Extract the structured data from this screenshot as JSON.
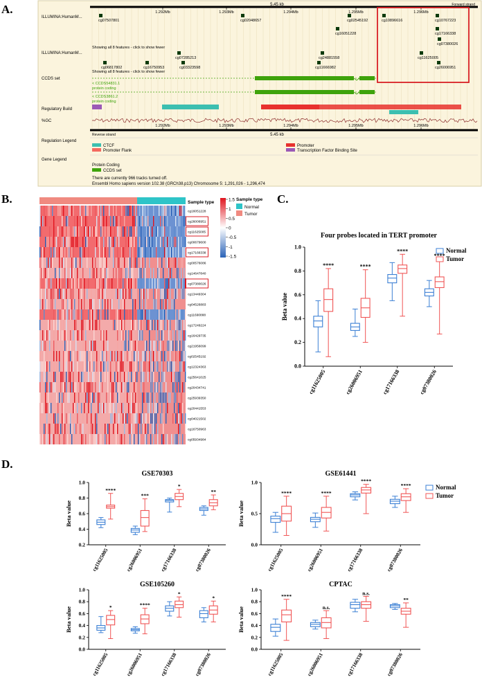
{
  "panel_labels": {
    "a": "A.",
    "b": "B.",
    "c": "C.",
    "d": "D."
  },
  "genome": {
    "scale_top": "5.45 kb",
    "forward_label": "Forward strand",
    "reverse_label": "Reverse strand",
    "scale_bottom": "5.45 kb",
    "ticks": [
      "1.292Mb",
      "1.293Mb",
      "1.294Mb",
      "1.295Mb",
      "1.296Mb"
    ],
    "track_names": [
      "ILLUMINA:HumanM...",
      "ILLUMINA:HumanM...",
      "CCDS set",
      "Regulatory Build",
      "%GC",
      "Regulation Legend",
      "Gene Legend"
    ],
    "probes_row1": [
      "cg07507801",
      "cg02048657",
      "cg02545192",
      "cg10896616",
      "cg10767223",
      "cg16051228",
      "cg17166338",
      "cg07380026"
    ],
    "show_fewer_1": "Showing all 8 features - click to show fewer",
    "probes_row2": [
      "cg07285213",
      "cg24881558",
      "cg11625005",
      "cg06817802",
      "cg16750953",
      "cg03323598",
      "cg11666982",
      "cg26006951"
    ],
    "show_fewer_2": "Showing all 8 features - click to show fewer",
    "ccds1_name": "< CCDS54831.1",
    "ccds1_type": "protein coding",
    "ccds2_name": "< CCDS3861.2",
    "ccds2_type": "protein coding",
    "reg_legend": [
      "CTCF",
      "Promoter",
      "Promoter Flank",
      "Transcription Factor Binding Site"
    ],
    "gene_legend_title": "Protein Coding",
    "gene_legend_item": "CCDS set",
    "footer1": "There are currently 966 tracks turned off.",
    "footer2": "Ensembl Homo sapiens version 102.38 (GRCh38.p13) Chromosome 5: 1,291,026 - 1,296,474",
    "colors": {
      "ctcf": "#3cbfb0",
      "promoter": "#e8312e",
      "flank": "#f4695f",
      "tfbs": "#9b59b6",
      "ccds": "#3ea30b"
    }
  },
  "heatmap": {
    "probes": [
      "cg16051228",
      "cg26006951",
      "cg11625005",
      "cg00679600",
      "cg17166338",
      "cg00576086",
      "cg14647840",
      "cg07380026",
      "cg13449304",
      "cg04526883",
      "cg11690888",
      "cg17249224",
      "cg16429735",
      "cg21956099",
      "cg02545192",
      "cg12324363",
      "cg25641025",
      "cg20434741",
      "cg25939350",
      "cg20441553",
      "cg04021502",
      "cg16750963",
      "cg05934984"
    ],
    "boxed_probes": [
      "cg26006951",
      "cg11625005",
      "cg17166338",
      "cg07380026"
    ],
    "annotation_title": "Sample type",
    "legend_title": "Sample type",
    "legend_items": [
      "Normal",
      "Tumor"
    ],
    "colorbar_ticks": [
      "1.5",
      "1",
      "0.5",
      "0",
      "-0.5",
      "-1",
      "-1.5"
    ],
    "colors": {
      "normal": "#2ec4c8",
      "tumor": "#f08a80",
      "high": "#e0141e",
      "mid": "#ffffff",
      "low": "#2b63b8"
    }
  },
  "chart_data": [
    {
      "id": "C",
      "type": "box",
      "title": "Four probes located in TERT promoter",
      "ylabel": "Beta value",
      "ylim": [
        0,
        1.0
      ],
      "yticks": [
        0,
        0.2,
        0.4,
        0.6,
        0.8,
        1.0
      ],
      "yticklabels": [
        "0.0",
        "0.2",
        "0.4",
        "0.6",
        "0.8",
        "1.0"
      ],
      "categories": [
        "cg11625005",
        "cg26006951",
        "cg17166338",
        "cg07380026"
      ],
      "series": [
        {
          "name": "Normal",
          "boxes": [
            [
              0.12,
              0.33,
              0.38,
              0.42,
              0.55
            ],
            [
              0.25,
              0.3,
              0.33,
              0.36,
              0.48
            ],
            [
              0.55,
              0.7,
              0.74,
              0.77,
              0.87
            ],
            [
              0.5,
              0.59,
              0.62,
              0.65,
              0.72
            ]
          ]
        },
        {
          "name": "Tumor",
          "boxes": [
            [
              0.08,
              0.46,
              0.56,
              0.65,
              0.82
            ],
            [
              0.2,
              0.41,
              0.49,
              0.57,
              0.81
            ],
            [
              0.42,
              0.78,
              0.82,
              0.85,
              0.94
            ],
            [
              0.27,
              0.66,
              0.71,
              0.75,
              0.9
            ]
          ]
        }
      ],
      "significance": [
        "****",
        "****",
        "****",
        "****"
      ]
    },
    {
      "id": "GSE70303",
      "type": "box",
      "title": "GSE70303",
      "ylabel": "Beta value",
      "ylim": [
        0.2,
        1.0
      ],
      "yticks": [
        0.2,
        0.4,
        0.6,
        0.8,
        1.0
      ],
      "yticklabels": [
        "0.2",
        "0.4",
        "0.6",
        "0.8",
        "1.0"
      ],
      "categories": [
        "cg11625005",
        "cg26006951",
        "cg17166338",
        "cg07380026"
      ],
      "series": [
        {
          "name": "Normal",
          "boxes": [
            [
              0.42,
              0.46,
              0.49,
              0.52,
              0.55
            ],
            [
              0.33,
              0.36,
              0.39,
              0.41,
              0.44
            ],
            [
              0.62,
              0.75,
              0.77,
              0.78,
              0.8
            ],
            [
              0.58,
              0.64,
              0.66,
              0.68,
              0.7
            ]
          ]
        },
        {
          "name": "Tumor",
          "boxes": [
            [
              0.53,
              0.67,
              0.69,
              0.71,
              0.86
            ],
            [
              0.37,
              0.44,
              0.55,
              0.64,
              0.79
            ],
            [
              0.69,
              0.78,
              0.82,
              0.86,
              0.91
            ],
            [
              0.65,
              0.7,
              0.74,
              0.78,
              0.84
            ]
          ]
        }
      ],
      "significance": [
        "****",
        "***",
        "*",
        "**"
      ]
    },
    {
      "id": "GSE61441",
      "type": "box",
      "title": "GSE61441",
      "ylabel": "Beta value",
      "ylim": [
        0,
        1.0
      ],
      "yticks": [
        0,
        0.5,
        1.0
      ],
      "yticklabels": [
        "0.0",
        "0.5",
        "1.0"
      ],
      "categories": [
        "cg11625005",
        "cg26006951",
        "cg17166338",
        "cg07380026"
      ],
      "series": [
        {
          "name": "Normal",
          "boxes": [
            [
              0.2,
              0.36,
              0.42,
              0.46,
              0.52
            ],
            [
              0.28,
              0.37,
              0.41,
              0.44,
              0.51
            ],
            [
              0.72,
              0.77,
              0.8,
              0.82,
              0.85
            ],
            [
              0.6,
              0.66,
              0.7,
              0.73,
              0.78
            ]
          ]
        },
        {
          "name": "Tumor",
          "boxes": [
            [
              0.15,
              0.38,
              0.5,
              0.62,
              0.78
            ],
            [
              0.22,
              0.43,
              0.52,
              0.6,
              0.78
            ],
            [
              0.5,
              0.83,
              0.88,
              0.92,
              0.97
            ],
            [
              0.52,
              0.71,
              0.77,
              0.82,
              0.9
            ]
          ]
        }
      ],
      "significance": [
        "****",
        "****",
        "****",
        "****"
      ],
      "legend": [
        "Normal",
        "Tumor"
      ]
    },
    {
      "id": "GSE105260",
      "type": "box",
      "title": "GSE105260",
      "ylabel": "Beta value",
      "ylim": [
        0,
        1.0
      ],
      "yticks": [
        0,
        0.2,
        0.4,
        0.6,
        0.8,
        1.0
      ],
      "yticklabels": [
        "0.0",
        "0.2",
        "0.4",
        "0.6",
        "0.8",
        "1.0"
      ],
      "categories": [
        "cg11625005",
        "cg26006951",
        "cg17166338",
        "cg07380026"
      ],
      "series": [
        {
          "name": "Normal",
          "boxes": [
            [
              0.28,
              0.32,
              0.36,
              0.4,
              0.55
            ],
            [
              0.27,
              0.31,
              0.33,
              0.35,
              0.38
            ],
            [
              0.56,
              0.64,
              0.69,
              0.73,
              0.8
            ],
            [
              0.46,
              0.53,
              0.6,
              0.65,
              0.7
            ]
          ]
        },
        {
          "name": "Tumor",
          "boxes": [
            [
              0.18,
              0.41,
              0.5,
              0.57,
              0.65
            ],
            [
              0.26,
              0.43,
              0.51,
              0.58,
              0.69
            ],
            [
              0.54,
              0.7,
              0.75,
              0.81,
              0.88
            ],
            [
              0.46,
              0.59,
              0.66,
              0.73,
              0.81
            ]
          ]
        }
      ],
      "significance": [
        "*",
        "****",
        "*",
        "*"
      ]
    },
    {
      "id": "CPTAC",
      "type": "box",
      "title": "CPTAC",
      "ylabel": "Beta value",
      "ylim": [
        0,
        1.0
      ],
      "yticks": [
        0,
        0.2,
        0.4,
        0.6,
        0.8,
        1.0
      ],
      "yticklabels": [
        "0.0",
        "0.2",
        "0.4",
        "0.6",
        "0.8",
        "1.0"
      ],
      "categories": [
        "cg11625005",
        "cg26006951",
        "cg17166338",
        "cg07380026"
      ],
      "series": [
        {
          "name": "Normal",
          "boxes": [
            [
              0.22,
              0.3,
              0.37,
              0.42,
              0.51
            ],
            [
              0.34,
              0.38,
              0.42,
              0.45,
              0.49
            ],
            [
              0.63,
              0.69,
              0.75,
              0.79,
              0.84
            ],
            [
              0.67,
              0.7,
              0.73,
              0.75,
              0.77
            ]
          ]
        },
        {
          "name": "Tumor",
          "boxes": [
            [
              0.15,
              0.46,
              0.58,
              0.66,
              0.84
            ],
            [
              0.18,
              0.36,
              0.45,
              0.53,
              0.65
            ],
            [
              0.47,
              0.69,
              0.75,
              0.8,
              0.89
            ],
            [
              0.37,
              0.59,
              0.64,
              0.69,
              0.78
            ]
          ]
        }
      ],
      "significance": [
        "****",
        "n.s.",
        "n.s.",
        "**"
      ]
    }
  ],
  "legend_c": [
    "Normal",
    "Tumor"
  ],
  "colors": {
    "normal": "#3a7fd4",
    "tumor": "#f05454"
  }
}
